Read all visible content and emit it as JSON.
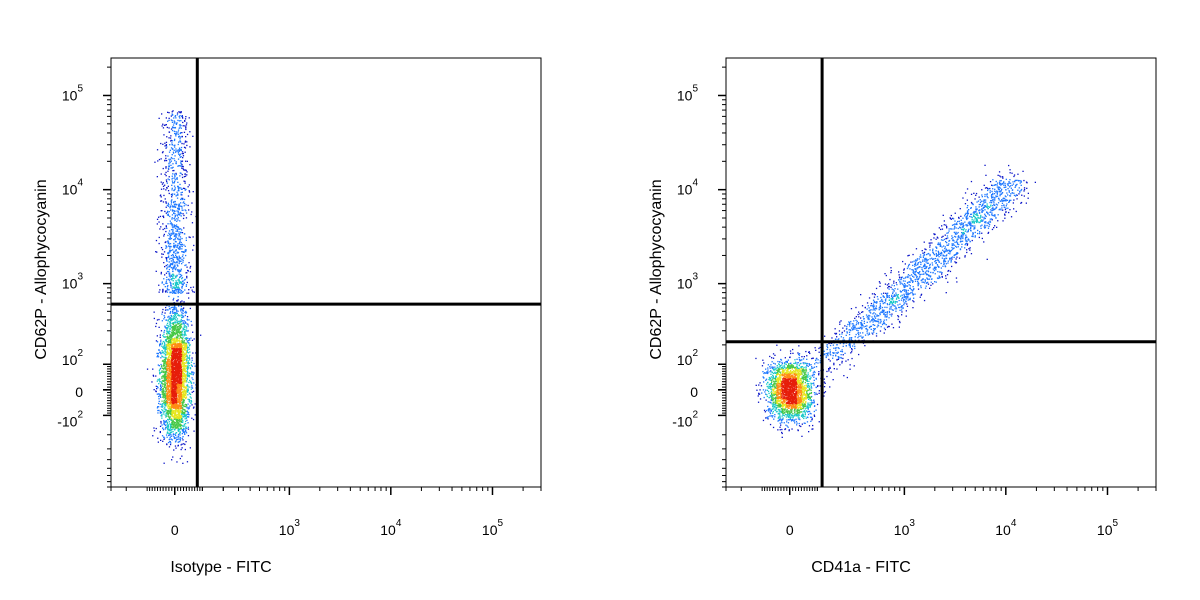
{
  "chart_data": [
    {
      "type": "scatter",
      "subtype": "flow-cytometry-density-dot-plot",
      "xlabel": "Isotype - FITC",
      "ylabel": "CD62P - Allophycocyanin",
      "x_scale": "biexponential",
      "y_scale": "biexponential",
      "xlim": [
        -300,
        300000
      ],
      "ylim": [
        -800,
        250000
      ],
      "x_tick_labels": [
        {
          "base": "0",
          "exp": "",
          "value": 0
        },
        {
          "base": "10",
          "exp": "3",
          "value": 1000
        },
        {
          "base": "10",
          "exp": "4",
          "value": 10000
        },
        {
          "base": "10",
          "exp": "5",
          "value": 100000
        }
      ],
      "y_tick_labels": [
        {
          "base": "-10",
          "exp": "2",
          "value": -100
        },
        {
          "base": "0",
          "exp": "",
          "value": 0
        },
        {
          "base": "10",
          "exp": "2",
          "value": 100
        },
        {
          "base": "10",
          "exp": "3",
          "value": 1000
        },
        {
          "base": "10",
          "exp": "4",
          "value": 10000
        },
        {
          "base": "10",
          "exp": "5",
          "value": 100000
        }
      ],
      "quadrant_gate": {
        "x": 80,
        "y": 600
      },
      "populations": [
        {
          "name": "",
          "x_center": 0,
          "x_spread": 25,
          "y_center": 30,
          "y_spread": 110,
          "count": 2600
        },
        {
          "name": "",
          "x_center": 0,
          "x_spread": 25,
          "y_center": 200,
          "y_spread": 180,
          "count": 900
        },
        {
          "name": "",
          "x_center": 0,
          "x_spread": 25,
          "y_low": 800,
          "y_high": 70000,
          "count": 1000
        }
      ],
      "density_colors": [
        "#0a14c8",
        "#1e78ff",
        "#19c8c8",
        "#46c846",
        "#e6e61e",
        "#ff8c14",
        "#e61e0a"
      ],
      "grid": false,
      "legend": "none"
    },
    {
      "type": "scatter",
      "subtype": "flow-cytometry-density-dot-plot",
      "xlabel": "CD41a - FITC",
      "ylabel": "CD62P - Allophycocyanin",
      "x_scale": "biexponential",
      "y_scale": "biexponential",
      "xlim": [
        -300,
        300000
      ],
      "ylim": [
        -800,
        250000
      ],
      "x_tick_labels": [
        {
          "base": "0",
          "exp": "",
          "value": 0
        },
        {
          "base": "10",
          "exp": "3",
          "value": 1000
        },
        {
          "base": "10",
          "exp": "4",
          "value": 10000
        },
        {
          "base": "10",
          "exp": "5",
          "value": 100000
        }
      ],
      "y_tick_labels": [
        {
          "base": "-10",
          "exp": "2",
          "value": -100
        },
        {
          "base": "0",
          "exp": "",
          "value": 0
        },
        {
          "base": "10",
          "exp": "2",
          "value": 100
        },
        {
          "base": "10",
          "exp": "3",
          "value": 1000
        },
        {
          "base": "10",
          "exp": "4",
          "value": 10000
        },
        {
          "base": "10",
          "exp": "5",
          "value": 100000
        }
      ],
      "quadrant_gate": {
        "x": 120,
        "y": 220
      },
      "populations": [
        {
          "name": "",
          "x_center": 0,
          "x_spread": 40,
          "y_center": 0,
          "y_spread": 60,
          "count": 2200
        },
        {
          "name": "",
          "x_from": 120,
          "x_to": 12000,
          "y_from": 100,
          "y_to": 12000,
          "spread": 0.05,
          "count": 1800
        }
      ],
      "density_colors": [
        "#0a14c8",
        "#1e78ff",
        "#19c8c8",
        "#46c846",
        "#e6e61e",
        "#ff8c14",
        "#e61e0a"
      ],
      "grid": false,
      "legend": "none"
    }
  ]
}
